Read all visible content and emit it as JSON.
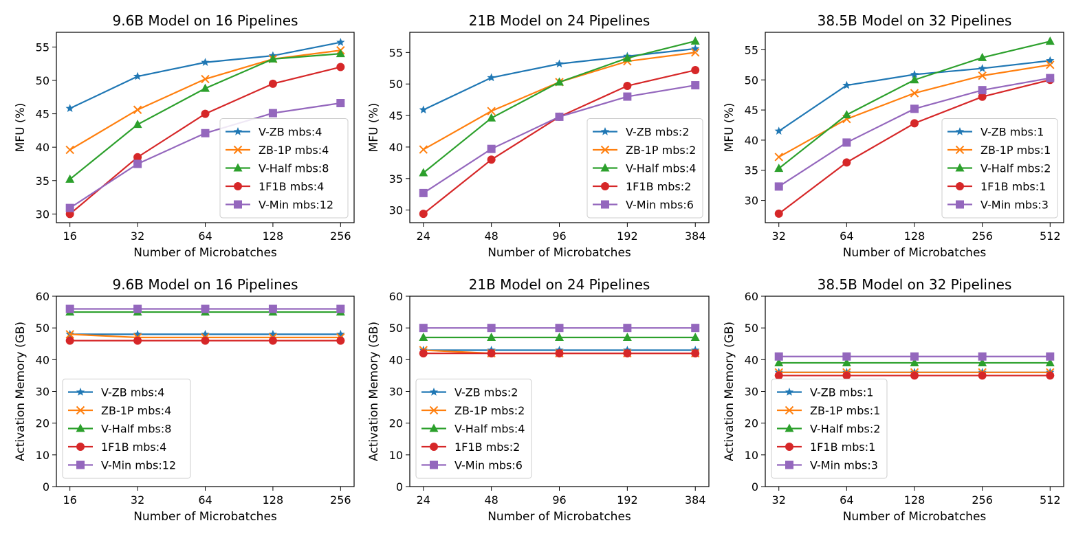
{
  "colors": {
    "V-ZB": "#1f77b4",
    "ZB-1P": "#ff7f0e",
    "V-Half": "#2ca02c",
    "1F1B": "#d62728",
    "V-Min": "#9467bd"
  },
  "chart_data": [
    {
      "type": "line",
      "title": "9.6B Model on 16 Pipelines",
      "xlabel": "Number of Microbatches",
      "ylabel": "MFU (%)",
      "x": [
        16,
        32,
        64,
        128,
        256
      ],
      "yticks": [
        30,
        35,
        40,
        45,
        50,
        55
      ],
      "ylim": [
        28.7,
        57.2
      ],
      "legend_loc": "lower-right",
      "series": [
        {
          "name": "V-ZB mbs:4",
          "key": "V-ZB",
          "marker": "star",
          "values": [
            45.8,
            50.6,
            52.7,
            53.7,
            55.7
          ]
        },
        {
          "name": "ZB-1P mbs:4",
          "key": "ZB-1P",
          "marker": "x",
          "values": [
            39.6,
            45.6,
            50.2,
            53.2,
            54.5
          ]
        },
        {
          "name": "V-Half mbs:8",
          "key": "V-Half",
          "marker": "triangle",
          "values": [
            35.2,
            43.4,
            48.8,
            53.2,
            54.0
          ]
        },
        {
          "name": "1F1B mbs:4",
          "key": "1F1B",
          "marker": "circle",
          "values": [
            30.0,
            38.5,
            45.0,
            49.5,
            52.0
          ]
        },
        {
          "name": "V-Min mbs:12",
          "key": "V-Min",
          "marker": "square",
          "values": [
            30.9,
            37.5,
            42.1,
            45.1,
            46.6
          ]
        }
      ]
    },
    {
      "type": "line",
      "title": "21B Model on 24 Pipelines",
      "xlabel": "Number of Microbatches",
      "ylabel": "MFU (%)",
      "x": [
        24,
        48,
        96,
        192,
        384
      ],
      "yticks": [
        30,
        35,
        40,
        45,
        50,
        55
      ],
      "ylim": [
        28.0,
        58.2
      ],
      "legend_loc": "lower-right",
      "series": [
        {
          "name": "V-ZB mbs:2",
          "key": "V-ZB",
          "marker": "star",
          "values": [
            45.9,
            51.0,
            53.2,
            54.4,
            55.6
          ]
        },
        {
          "name": "ZB-1P mbs:2",
          "key": "ZB-1P",
          "marker": "x",
          "values": [
            39.6,
            45.7,
            50.3,
            53.6,
            55.0
          ]
        },
        {
          "name": "V-Half mbs:4",
          "key": "V-Half",
          "marker": "triangle",
          "values": [
            35.9,
            44.6,
            50.3,
            54.1,
            56.8
          ]
        },
        {
          "name": "1F1B mbs:2",
          "key": "1F1B",
          "marker": "circle",
          "values": [
            29.4,
            38.0,
            44.8,
            49.7,
            52.2
          ]
        },
        {
          "name": "V-Min mbs:6",
          "key": "V-Min",
          "marker": "square",
          "values": [
            32.7,
            39.7,
            44.8,
            48.0,
            49.8
          ]
        }
      ]
    },
    {
      "type": "line",
      "title": "38.5B Model on 32 Pipelines",
      "xlabel": "Number of Microbatches",
      "ylabel": "MFU (%)",
      "x": [
        32,
        64,
        128,
        256,
        512
      ],
      "yticks": [
        30,
        35,
        40,
        45,
        50,
        55
      ],
      "ylim": [
        26.3,
        57.9
      ],
      "legend_loc": "lower-right",
      "series": [
        {
          "name": "V-ZB mbs:1",
          "key": "V-ZB",
          "marker": "star",
          "values": [
            41.5,
            49.1,
            50.9,
            51.9,
            53.2
          ]
        },
        {
          "name": "ZB-1P mbs:1",
          "key": "ZB-1P",
          "marker": "x",
          "values": [
            37.2,
            43.5,
            47.8,
            50.7,
            52.5
          ]
        },
        {
          "name": "V-Half mbs:2",
          "key": "V-Half",
          "marker": "triangle",
          "values": [
            35.3,
            44.2,
            50.0,
            53.7,
            56.4
          ]
        },
        {
          "name": "1F1B mbs:1",
          "key": "1F1B",
          "marker": "circle",
          "values": [
            27.8,
            36.3,
            42.8,
            47.2,
            50.0
          ]
        },
        {
          "name": "V-Min mbs:3",
          "key": "V-Min",
          "marker": "square",
          "values": [
            32.3,
            39.6,
            45.2,
            48.3,
            50.3
          ]
        }
      ]
    },
    {
      "type": "line",
      "title": "9.6B Model on 16 Pipelines",
      "xlabel": "Number of Microbatches",
      "ylabel": "Activation Memory (GB)",
      "x": [
        16,
        32,
        64,
        128,
        256
      ],
      "yticks": [
        0,
        10,
        20,
        30,
        40,
        50,
        60
      ],
      "ylim": [
        0,
        60
      ],
      "legend_loc": "lower-left",
      "series": [
        {
          "name": "V-ZB mbs:4",
          "key": "V-ZB",
          "marker": "star",
          "values": [
            48,
            48,
            48,
            48,
            48
          ]
        },
        {
          "name": "ZB-1P mbs:4",
          "key": "ZB-1P",
          "marker": "x",
          "values": [
            48,
            47,
            47,
            47,
            47
          ]
        },
        {
          "name": "V-Half mbs:8",
          "key": "V-Half",
          "marker": "triangle",
          "values": [
            55,
            55,
            55,
            55,
            55
          ]
        },
        {
          "name": "1F1B mbs:4",
          "key": "1F1B",
          "marker": "circle",
          "values": [
            46,
            46,
            46,
            46,
            46
          ]
        },
        {
          "name": "V-Min mbs:12",
          "key": "V-Min",
          "marker": "square",
          "values": [
            56,
            56,
            56,
            56,
            56
          ]
        }
      ]
    },
    {
      "type": "line",
      "title": "21B Model on 24 Pipelines",
      "xlabel": "Number of Microbatches",
      "ylabel": "Activation Memory (GB)",
      "x": [
        24,
        48,
        96,
        192,
        384
      ],
      "yticks": [
        0,
        10,
        20,
        30,
        40,
        50,
        60
      ],
      "ylim": [
        0,
        60
      ],
      "legend_loc": "lower-left",
      "series": [
        {
          "name": "V-ZB mbs:2",
          "key": "V-ZB",
          "marker": "star",
          "values": [
            43,
            43,
            43,
            43,
            43
          ]
        },
        {
          "name": "ZB-1P mbs:2",
          "key": "ZB-1P",
          "marker": "x",
          "values": [
            43,
            42,
            42,
            42,
            42
          ]
        },
        {
          "name": "V-Half mbs:4",
          "key": "V-Half",
          "marker": "triangle",
          "values": [
            47,
            47,
            47,
            47,
            47
          ]
        },
        {
          "name": "1F1B mbs:2",
          "key": "1F1B",
          "marker": "circle",
          "values": [
            42,
            42,
            42,
            42,
            42
          ]
        },
        {
          "name": "V-Min mbs:6",
          "key": "V-Min",
          "marker": "square",
          "values": [
            50,
            50,
            50,
            50,
            50
          ]
        }
      ]
    },
    {
      "type": "line",
      "title": "38.5B Model on 32 Pipelines",
      "xlabel": "Number of Microbatches",
      "ylabel": "Activation Memory (GB)",
      "x": [
        32,
        64,
        128,
        256,
        512
      ],
      "yticks": [
        0,
        10,
        20,
        30,
        40,
        50,
        60
      ],
      "ylim": [
        0,
        60
      ],
      "legend_loc": "lower-left",
      "series": [
        {
          "name": "V-ZB mbs:1",
          "key": "V-ZB",
          "marker": "star",
          "values": [
            36,
            36,
            36,
            36,
            36
          ]
        },
        {
          "name": "ZB-1P mbs:1",
          "key": "ZB-1P",
          "marker": "x",
          "values": [
            36,
            36,
            36,
            36,
            36
          ]
        },
        {
          "name": "V-Half mbs:2",
          "key": "V-Half",
          "marker": "triangle",
          "values": [
            39,
            39,
            39,
            39,
            39
          ]
        },
        {
          "name": "1F1B mbs:1",
          "key": "1F1B",
          "marker": "circle",
          "values": [
            35,
            35,
            35,
            35,
            35
          ]
        },
        {
          "name": "V-Min mbs:3",
          "key": "V-Min",
          "marker": "square",
          "values": [
            41,
            41,
            41,
            41,
            41
          ]
        }
      ]
    }
  ]
}
